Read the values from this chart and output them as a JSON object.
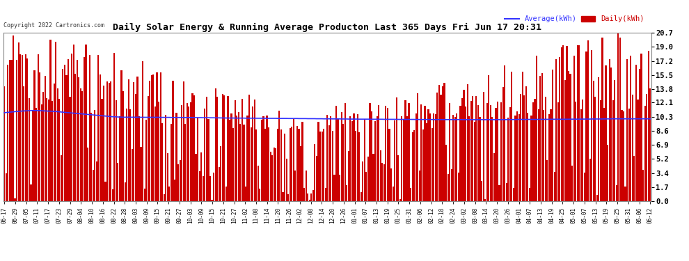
{
  "title": "Daily Solar Energy & Running Average Producton Last 365 Days Fri Jun 17 20:31",
  "copyright": "Copyright 2022 Cartronics.com",
  "ylabel_right_ticks": [
    0.0,
    1.7,
    3.4,
    5.2,
    6.9,
    8.6,
    10.3,
    12.1,
    13.8,
    15.5,
    17.2,
    19.0,
    20.7
  ],
  "bar_color": "#cc0000",
  "avg_color": "#3333ff",
  "background_color": "#ffffff",
  "grid_color": "#999999",
  "title_color": "#000000",
  "legend_avg_label": "Average(kWh)",
  "legend_daily_label": "Daily(kWh)",
  "x_tick_labels": [
    "06-17",
    "06-29",
    "07-05",
    "07-11",
    "07-17",
    "07-23",
    "07-29",
    "08-04",
    "08-10",
    "08-16",
    "08-22",
    "08-28",
    "09-03",
    "09-09",
    "09-15",
    "09-21",
    "09-27",
    "10-03",
    "10-09",
    "10-15",
    "10-21",
    "10-27",
    "11-02",
    "11-08",
    "11-14",
    "11-20",
    "11-26",
    "12-02",
    "12-08",
    "12-14",
    "12-20",
    "12-26",
    "01-01",
    "01-07",
    "01-13",
    "01-19",
    "01-25",
    "01-31",
    "02-06",
    "02-12",
    "02-18",
    "02-24",
    "03-02",
    "03-08",
    "03-14",
    "03-20",
    "03-26",
    "04-01",
    "04-07",
    "04-13",
    "04-19",
    "04-25",
    "05-01",
    "05-07",
    "05-13",
    "05-19",
    "05-25",
    "05-31",
    "06-06",
    "06-12"
  ],
  "num_bars": 365,
  "avg_line": [
    10.85,
    10.88,
    10.9,
    10.92,
    10.94,
    10.96,
    10.98,
    11.0,
    11.02,
    11.04,
    11.06,
    11.07,
    11.08,
    11.09,
    11.1,
    11.11,
    11.12,
    11.12,
    11.12,
    11.11,
    11.1,
    11.09,
    11.08,
    11.07,
    11.06,
    11.05,
    11.04,
    11.03,
    11.02,
    11.0,
    10.98,
    10.96,
    10.94,
    10.92,
    10.9,
    10.88,
    10.86,
    10.84,
    10.82,
    10.8,
    10.78,
    10.76,
    10.74,
    10.72,
    10.7,
    10.68,
    10.66,
    10.64,
    10.62,
    10.6,
    10.58,
    10.56,
    10.54,
    10.52,
    10.5,
    10.48,
    10.46,
    10.44,
    10.42,
    10.4,
    10.38,
    10.36,
    10.35,
    10.34,
    10.33,
    10.32,
    10.31,
    10.3,
    10.3,
    10.3,
    10.3,
    10.3,
    10.3,
    10.3,
    10.3,
    10.3,
    10.3,
    10.29,
    10.29,
    10.29,
    10.29,
    10.29,
    10.29,
    10.29,
    10.29,
    10.29,
    10.29,
    10.29,
    10.28,
    10.28,
    10.28,
    10.28,
    10.28,
    10.28,
    10.27,
    10.27,
    10.27,
    10.27,
    10.27,
    10.27,
    10.27,
    10.26,
    10.26,
    10.26,
    10.26,
    10.26,
    10.26,
    10.25,
    10.25,
    10.25,
    10.25,
    10.25,
    10.24,
    10.24,
    10.24,
    10.24,
    10.23,
    10.23,
    10.23,
    10.22,
    10.22,
    10.22,
    10.21,
    10.21,
    10.21,
    10.2,
    10.2,
    10.2,
    10.2,
    10.2,
    10.19,
    10.19,
    10.19,
    10.19,
    10.19,
    10.19,
    10.18,
    10.18,
    10.18,
    10.18,
    10.18,
    10.18,
    10.17,
    10.17,
    10.17,
    10.17,
    10.17,
    10.17,
    10.16,
    10.16,
    10.16,
    10.16,
    10.16,
    10.16,
    10.15,
    10.15,
    10.15,
    10.15,
    10.15,
    10.15,
    10.14,
    10.14,
    10.14,
    10.14,
    10.14,
    10.14,
    10.13,
    10.13,
    10.13,
    10.13,
    10.13,
    10.12,
    10.12,
    10.12,
    10.12,
    10.12,
    10.11,
    10.11,
    10.11,
    10.11,
    10.1,
    10.1,
    10.1,
    10.1,
    10.1,
    10.09,
    10.09,
    10.09,
    10.09,
    10.09,
    10.08,
    10.08,
    10.08,
    10.08,
    10.07,
    10.07,
    10.07,
    10.07,
    10.07,
    10.07,
    10.06,
    10.06,
    10.06,
    10.06,
    10.06,
    10.06,
    10.06,
    10.05,
    10.05,
    10.05,
    10.05,
    10.05,
    10.05,
    10.05,
    10.04,
    10.04,
    10.04,
    10.04,
    10.04,
    10.04,
    10.04,
    10.04,
    10.03,
    10.03,
    10.03,
    10.03,
    10.03,
    10.03,
    10.03,
    10.03,
    10.03,
    10.03,
    10.02,
    10.02,
    10.02,
    10.02,
    10.02,
    10.02,
    10.02,
    10.02,
    10.02,
    10.02,
    10.02,
    10.01,
    10.01,
    10.01,
    10.01,
    10.01,
    10.01,
    10.01,
    10.01,
    10.01,
    10.01,
    10.01,
    10.01,
    10.01,
    10.01,
    10.01,
    10.0,
    10.0,
    10.0,
    10.0,
    10.0,
    10.0,
    10.0,
    10.0,
    10.0,
    10.0,
    10.0,
    10.0,
    10.0,
    10.0,
    10.0,
    10.0,
    10.0,
    10.0,
    10.0,
    10.0,
    10.0,
    10.0,
    10.0,
    10.0,
    10.01,
    10.01,
    10.01,
    10.01,
    10.02,
    10.02,
    10.02,
    10.02,
    10.03,
    10.03,
    10.03,
    10.03,
    10.03,
    10.03,
    10.03,
    10.03,
    10.03,
    10.03,
    10.03,
    10.03,
    10.04,
    10.04,
    10.04,
    10.04,
    10.04,
    10.04,
    10.05,
    10.05,
    10.05,
    10.05,
    10.05,
    10.05,
    10.05,
    10.05,
    10.05,
    10.05,
    10.05,
    10.06,
    10.06,
    10.06,
    10.06,
    10.06,
    10.06,
    10.07,
    10.07,
    10.07,
    10.07,
    10.07,
    10.07,
    10.08,
    10.08,
    10.08,
    10.08,
    10.08,
    10.08,
    10.08,
    10.09,
    10.09,
    10.09,
    10.09,
    10.1,
    10.1,
    10.1,
    10.1,
    10.1,
    10.1,
    10.1,
    10.1,
    10.1,
    10.1,
    10.1,
    10.1,
    10.1,
    10.1,
    10.1,
    10.1,
    10.1,
    10.1,
    10.1,
    10.1,
    10.1,
    10.1,
    10.1
  ]
}
